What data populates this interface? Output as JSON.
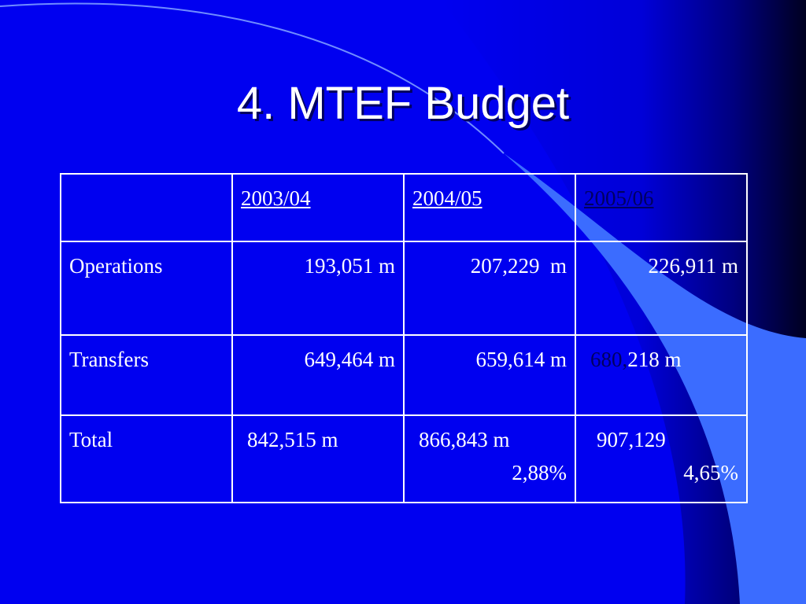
{
  "slide": {
    "title": "4. MTEF Budget"
  },
  "table": {
    "headers": [
      "",
      "2003/04",
      "2004/05",
      "2005/06"
    ],
    "rows": [
      {
        "label": "Operations",
        "values": [
          "193,051 m",
          "207,229  m",
          "226,911 m"
        ]
      },
      {
        "label": "Transfers",
        "values": [
          "649,464 m",
          "659,614 m"
        ],
        "last_value_dim": "680,",
        "last_value_rest": "218 m"
      },
      {
        "label": "Total",
        "values": [
          "842,515 m",
          "866,843 m",
          "907,129"
        ],
        "growth": [
          "2,88%",
          "4,65%"
        ]
      }
    ]
  },
  "colors": {
    "background": "#0000f0",
    "dark_band": "#000040",
    "light_swoosh": "#3b6cff",
    "text": "#ffffff"
  }
}
